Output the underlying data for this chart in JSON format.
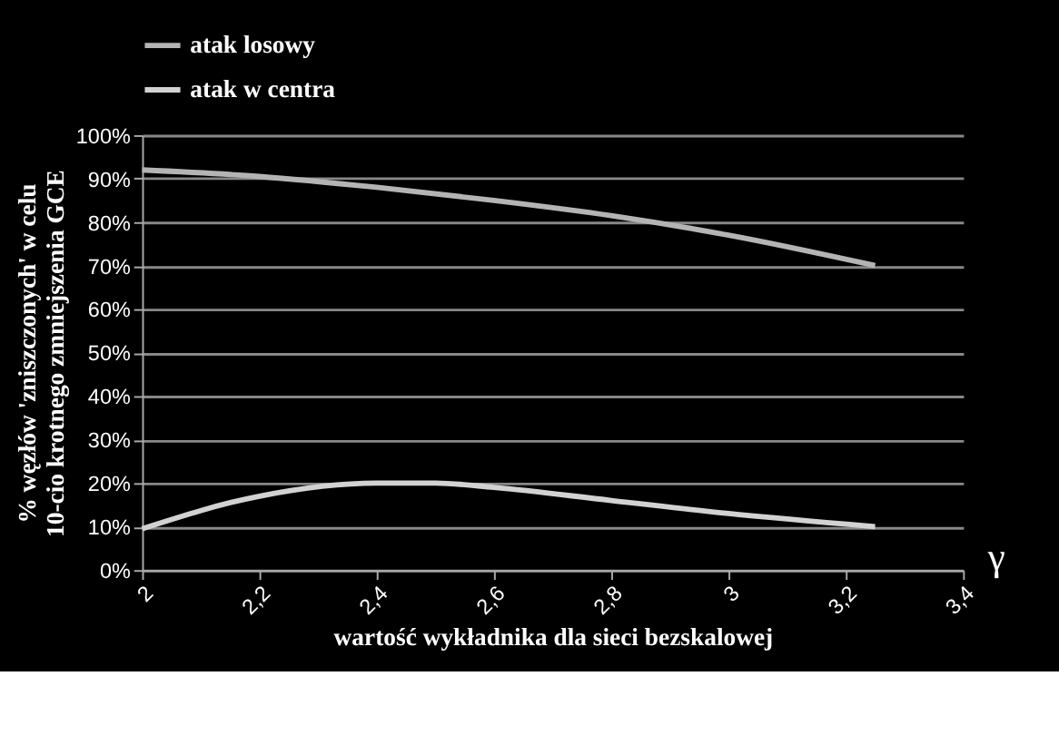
{
  "chart_data": {
    "type": "line",
    "xlabel": "wartość wykładnika dla sieci bezskalowej",
    "ylabel": "% węzłów 'zniszczonych' w celu\n10-cio krotnego zmniejszenia GCE",
    "annotations": [
      "γ"
    ],
    "series": [
      {
        "name": "atak losowy",
        "color": "#b4b4b4",
        "x": [
          2,
          2.2,
          2.4,
          2.6,
          2.8,
          3.0,
          3.25
        ],
        "values": [
          92,
          90.5,
          88,
          85,
          81.5,
          77,
          70
        ]
      },
      {
        "name": "atak w centra",
        "color": "#d2d2d2",
        "x": [
          2,
          2.2,
          2.4,
          2.5,
          2.6,
          2.8,
          3.0,
          3.25
        ],
        "values": [
          9.5,
          17,
          20,
          20,
          19,
          16,
          13,
          10
        ]
      }
    ],
    "xlim": [
      2,
      3.4
    ],
    "xticks": [
      2,
      {
        "value": 2.2,
        "label": "2,2"
      },
      {
        "value": 2.4,
        "label": "2,4"
      },
      {
        "value": 2.6,
        "label": "2,6"
      },
      {
        "value": 2.8,
        "label": "2,8"
      },
      3,
      {
        "value": 3.2,
        "label": "3,2"
      },
      {
        "value": 3.4,
        "label": "3,4"
      }
    ],
    "ylim": [
      0,
      100
    ],
    "yticks": [
      {
        "value": 0,
        "label": "0%"
      },
      {
        "value": 10,
        "label": "10%"
      },
      {
        "value": 20,
        "label": "20%"
      },
      {
        "value": 30,
        "label": "30%"
      },
      {
        "value": 40,
        "label": "40%"
      },
      {
        "value": 50,
        "label": "50%"
      },
      {
        "value": 60,
        "label": "60%"
      },
      {
        "value": 70,
        "label": "70%"
      },
      {
        "value": 80,
        "label": "80%"
      },
      {
        "value": 90,
        "label": "90%"
      },
      {
        "value": 100,
        "label": "100%"
      }
    ],
    "grid": "y",
    "legend": "top",
    "line_style": "solid",
    "marker": "none"
  }
}
